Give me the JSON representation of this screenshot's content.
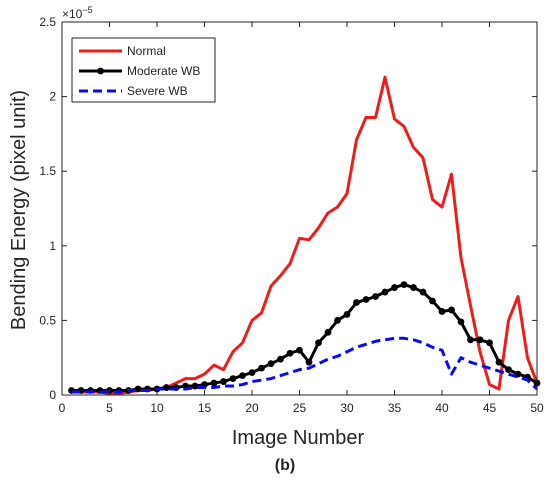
{
  "chart_data": {
    "type": "line",
    "xlabel": "Image Number",
    "ylabel": "Bending Energy (pixel unit)",
    "y_exponent_label": "×10",
    "y_exponent_power": "−5",
    "panel_label": "(b)",
    "xlim": [
      0,
      50
    ],
    "ylim": [
      0,
      2.5
    ],
    "x_ticks": [
      0,
      5,
      10,
      15,
      20,
      25,
      30,
      35,
      40,
      45,
      50
    ],
    "x_tick_labels": [
      "0",
      "5",
      "10",
      "15",
      "20",
      "25",
      "30",
      "35",
      "40",
      "45",
      "50"
    ],
    "y_ticks": [
      0,
      0.5,
      1,
      1.5,
      2,
      2.5
    ],
    "y_tick_labels": [
      "0",
      "0.5",
      "1",
      "1.5",
      "2",
      "2.5"
    ],
    "grid": false,
    "legend_position": "top-left",
    "x": [
      1,
      2,
      3,
      4,
      5,
      6,
      7,
      8,
      9,
      10,
      11,
      12,
      13,
      14,
      15,
      16,
      17,
      18,
      19,
      20,
      21,
      22,
      23,
      24,
      25,
      26,
      27,
      28,
      29,
      30,
      31,
      32,
      33,
      34,
      35,
      36,
      37,
      38,
      39,
      40,
      41,
      42,
      43,
      44,
      45,
      46,
      47,
      48,
      49,
      50
    ],
    "series": [
      {
        "name": "Normal",
        "color": "#ee1c1c",
        "style": "solid",
        "marker": "none",
        "values": [
          0.03,
          0.02,
          0.02,
          0.02,
          0.01,
          0.01,
          0.02,
          0.03,
          0.03,
          0.04,
          0.05,
          0.08,
          0.11,
          0.11,
          0.14,
          0.2,
          0.17,
          0.29,
          0.35,
          0.5,
          0.55,
          0.73,
          0.8,
          0.88,
          1.05,
          1.04,
          1.12,
          1.22,
          1.26,
          1.35,
          1.71,
          1.86,
          1.86,
          2.13,
          1.85,
          1.8,
          1.66,
          1.59,
          1.31,
          1.26,
          1.48,
          0.92,
          0.6,
          0.29,
          0.07,
          0.04,
          0.5,
          0.66,
          0.25,
          0.08
        ]
      },
      {
        "name": "Moderate WB",
        "color": "#000000",
        "style": "solid",
        "marker": "circle",
        "values": [
          0.03,
          0.03,
          0.03,
          0.03,
          0.03,
          0.03,
          0.03,
          0.04,
          0.04,
          0.04,
          0.05,
          0.05,
          0.06,
          0.06,
          0.07,
          0.08,
          0.09,
          0.11,
          0.13,
          0.15,
          0.18,
          0.21,
          0.24,
          0.28,
          0.3,
          0.22,
          0.35,
          0.42,
          0.5,
          0.54,
          0.62,
          0.64,
          0.66,
          0.69,
          0.72,
          0.74,
          0.72,
          0.69,
          0.63,
          0.56,
          0.57,
          0.49,
          0.37,
          0.37,
          0.35,
          0.22,
          0.17,
          0.14,
          0.12,
          0.08
        ]
      },
      {
        "name": "Severe WB",
        "color": "#0a0aee",
        "style": "dashed",
        "marker": "none",
        "values": [
          0.02,
          0.02,
          0.02,
          0.02,
          0.02,
          0.02,
          0.03,
          0.03,
          0.03,
          0.04,
          0.04,
          0.04,
          0.04,
          0.05,
          0.05,
          0.05,
          0.06,
          0.06,
          0.07,
          0.09,
          0.1,
          0.11,
          0.13,
          0.15,
          0.17,
          0.18,
          0.21,
          0.24,
          0.26,
          0.29,
          0.32,
          0.34,
          0.36,
          0.37,
          0.38,
          0.38,
          0.37,
          0.35,
          0.32,
          0.3,
          0.14,
          0.25,
          0.22,
          0.2,
          0.18,
          0.16,
          0.14,
          0.12,
          0.1,
          0.04
        ]
      }
    ]
  }
}
